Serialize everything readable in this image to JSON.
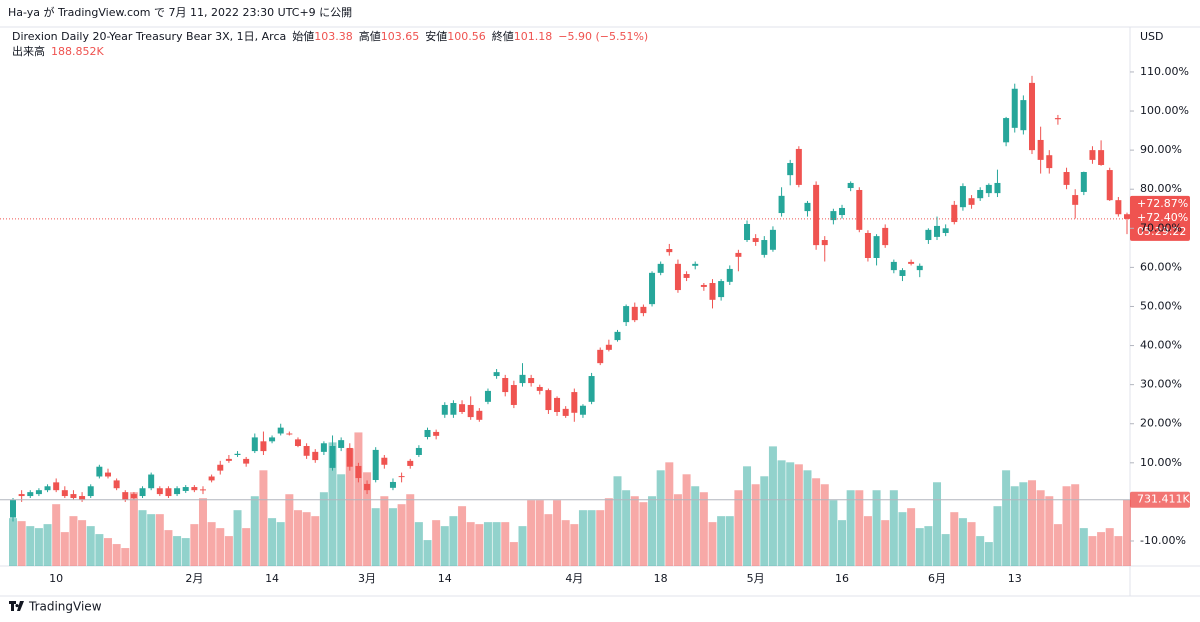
{
  "header": {
    "published": "Ha-ya が TradingView.com で 7月 11, 2022 23:30 UTC+9 に公開"
  },
  "legend": {
    "symbol": "Direxion Daily 20-Year Treasury Bear 3X, 1日, Arca",
    "ohlc": [
      {
        "label": "始値",
        "value": "103.38"
      },
      {
        "label": "高値",
        "value": "103.65"
      },
      {
        "label": "安値",
        "value": "100.56"
      },
      {
        "label": "終値",
        "value": "101.18"
      }
    ],
    "change": "−5.90 (−5.51%)",
    "volume_label": "出来高",
    "volume_value": "188.852K"
  },
  "footer": {
    "brand": "TradingView"
  },
  "chart_data": {
    "type": "candlestick",
    "currency": "USD",
    "up_color": "#26a69a",
    "down_color": "#ef5350",
    "ylim": [
      -16.4,
      121.5
    ],
    "yticks": [
      {
        "value": 110,
        "label": "110.00%"
      },
      {
        "value": 100,
        "label": "100.00%"
      },
      {
        "value": 90,
        "label": "90.00%"
      },
      {
        "value": 80,
        "label": "80.00%"
      },
      {
        "value": 70,
        "label": "70.00%"
      },
      {
        "value": 60,
        "label": "60.00%"
      },
      {
        "value": 50,
        "label": "50.00%"
      },
      {
        "value": 40,
        "label": "40.00%"
      },
      {
        "value": 30,
        "label": "30.00%"
      },
      {
        "value": 20,
        "label": "20.00%"
      },
      {
        "value": 10,
        "label": "10.00%"
      },
      {
        "value": -10,
        "label": "-10.00%"
      }
    ],
    "vlim": [
      0,
      1600
    ],
    "price_labels": [
      "+72.87%",
      "+72.40%",
      "05:29:22"
    ],
    "volume_last_label": "731.411K",
    "categories": [
      null,
      null,
      null,
      null,
      null,
      "10",
      null,
      null,
      null,
      null,
      null,
      null,
      null,
      null,
      null,
      null,
      null,
      null,
      null,
      null,
      null,
      "2月",
      null,
      null,
      null,
      null,
      null,
      null,
      null,
      null,
      "14",
      null,
      null,
      null,
      null,
      null,
      null,
      null,
      null,
      null,
      null,
      "3月",
      null,
      null,
      null,
      null,
      null,
      null,
      null,
      null,
      "14",
      null,
      null,
      null,
      null,
      null,
      null,
      null,
      null,
      null,
      null,
      null,
      null,
      null,
      null,
      "4月",
      null,
      null,
      null,
      null,
      null,
      null,
      null,
      null,
      null,
      "18",
      null,
      null,
      null,
      null,
      null,
      null,
      null,
      null,
      null,
      null,
      "5月",
      null,
      null,
      null,
      null,
      null,
      null,
      null,
      null,
      null,
      "16",
      null,
      null,
      null,
      null,
      null,
      null,
      null,
      null,
      null,
      null,
      "6月",
      null,
      null,
      null,
      null,
      null,
      null,
      null,
      null,
      "13",
      null,
      null,
      null,
      null,
      null,
      null,
      null,
      null,
      null,
      null,
      null,
      null,
      null
    ],
    "ohlc": [
      [
        -4,
        1,
        -5,
        0.5
      ],
      [
        2,
        3,
        0,
        1.5
      ],
      [
        1.5,
        3,
        1,
        2.5
      ],
      [
        2,
        3.5,
        1.5,
        3
      ],
      [
        3,
        4.5,
        2.5,
        4
      ],
      [
        5,
        6,
        2.5,
        3
      ],
      [
        3,
        4,
        1,
        1.5
      ],
      [
        2,
        3,
        0.5,
        1
      ],
      [
        1.5,
        2.5,
        0,
        0.5
      ],
      [
        1.5,
        4.5,
        1,
        4
      ],
      [
        6.5,
        9.5,
        6,
        9
      ],
      [
        7.5,
        8.5,
        6,
        6.5
      ],
      [
        5.5,
        6,
        3,
        3.5
      ],
      [
        2.5,
        3,
        0,
        0.5
      ],
      [
        2,
        2.5,
        0.5,
        1
      ],
      [
        1.5,
        4,
        1,
        3.5
      ],
      [
        3.5,
        7.5,
        3,
        7
      ],
      [
        3.5,
        4,
        1.5,
        2
      ],
      [
        3.5,
        4,
        1,
        1.5
      ],
      [
        2,
        4,
        1.5,
        3.5
      ],
      [
        2.8,
        4.3,
        2.3,
        3.8
      ],
      [
        3.8,
        4.3,
        2.5,
        3
      ],
      [
        3.2,
        4,
        2,
        3
      ],
      [
        6.5,
        7,
        5,
        5.5
      ],
      [
        9.5,
        10.5,
        7,
        8
      ],
      [
        11,
        12,
        10,
        10.5
      ],
      [
        12,
        13,
        11.5,
        12.3
      ],
      [
        11,
        11.5,
        9,
        9.8
      ],
      [
        13,
        17.5,
        12.5,
        16.5
      ],
      [
        15.5,
        18,
        12,
        13
      ],
      [
        15.5,
        17,
        15,
        16.5
      ],
      [
        17.5,
        20,
        17,
        19
      ],
      [
        17.5,
        18,
        17,
        17.3
      ],
      [
        16,
        16.5,
        14,
        14.3
      ],
      [
        14.3,
        15,
        11,
        11.8
      ],
      [
        12.8,
        13.5,
        10,
        10.7
      ],
      [
        12.8,
        15.5,
        12,
        15
      ],
      [
        8.7,
        17,
        8,
        14.3
      ],
      [
        13.8,
        16.5,
        13,
        15.8
      ],
      [
        13.8,
        15,
        8,
        9
      ],
      [
        9.2,
        10,
        5,
        6.1
      ],
      [
        4.6,
        5.5,
        2,
        3
      ],
      [
        5.6,
        14,
        5,
        13.3
      ],
      [
        11.3,
        12,
        8.5,
        9.5
      ],
      [
        3.6,
        6,
        3,
        5.1
      ],
      [
        6.6,
        7.5,
        5,
        6.4
      ],
      [
        10.5,
        11,
        8.5,
        9.2
      ],
      [
        12,
        14.5,
        11.5,
        13.8
      ],
      [
        16.6,
        19,
        16,
        18.4
      ],
      [
        17.9,
        18.5,
        16,
        16.9
      ],
      [
        22.3,
        25.5,
        21.5,
        24.8
      ],
      [
        22.3,
        26,
        21.5,
        25.3
      ],
      [
        25,
        26,
        22.5,
        23
      ],
      [
        24.8,
        27,
        21,
        21.7
      ],
      [
        23.3,
        24,
        20.5,
        21
      ],
      [
        25.6,
        29,
        25,
        28.4
      ],
      [
        32.2,
        34,
        31.5,
        33.2
      ],
      [
        31.7,
        32.5,
        27,
        28.1
      ],
      [
        29.9,
        31,
        24,
        24.8
      ],
      [
        30.4,
        35.5,
        29.5,
        32.5
      ],
      [
        31.7,
        32.5,
        29.5,
        30.4
      ],
      [
        29.4,
        30,
        27.5,
        28.4
      ],
      [
        28.6,
        29,
        22.5,
        23.5
      ],
      [
        26.6,
        27,
        22,
        23
      ],
      [
        23.8,
        24.5,
        21.5,
        22
      ],
      [
        28.1,
        29,
        20.5,
        22.8
      ],
      [
        22.3,
        25,
        21.5,
        24.6
      ],
      [
        25.6,
        33,
        25,
        32.2
      ],
      [
        38.9,
        39.5,
        35,
        35.5
      ],
      [
        40.2,
        41.5,
        38.5,
        38.9
      ],
      [
        41.4,
        44,
        41,
        43.5
      ],
      [
        46,
        50.5,
        45,
        50.1
      ],
      [
        49.9,
        51,
        46,
        46.5
      ],
      [
        49.9,
        50.5,
        47.5,
        48.3
      ],
      [
        50.6,
        59,
        50,
        58.6
      ],
      [
        58.6,
        61.5,
        58,
        60.9
      ],
      [
        64.7,
        66,
        63,
        63.9
      ],
      [
        60.9,
        62,
        53.5,
        54.2
      ],
      [
        58.3,
        59,
        56.5,
        57.3
      ],
      [
        60.4,
        61.5,
        59.5,
        60.9
      ],
      [
        55.5,
        56,
        54,
        55
      ],
      [
        56,
        57,
        49.5,
        51.7
      ],
      [
        52.4,
        57,
        51.5,
        56.5
      ],
      [
        56.3,
        60.5,
        55.5,
        59.6
      ],
      [
        63.7,
        64.5,
        59,
        62.7
      ],
      [
        67,
        72,
        66.5,
        71.1
      ],
      [
        67.5,
        68.5,
        65.5,
        66.5
      ],
      [
        63.2,
        68,
        62.5,
        67
      ],
      [
        64.5,
        70.5,
        64,
        69.6
      ],
      [
        73.9,
        80.5,
        73,
        78.3
      ],
      [
        83.6,
        87.5,
        81,
        86.7
      ],
      [
        90.3,
        91,
        80.5,
        81.1
      ],
      [
        74.4,
        77,
        73,
        76.5
      ],
      [
        81.1,
        82,
        64.5,
        65.7
      ],
      [
        67,
        68,
        61.5,
        65.7
      ],
      [
        72.1,
        75,
        71,
        74.4
      ],
      [
        73.4,
        76,
        72.5,
        75.2
      ],
      [
        80.3,
        82,
        79.5,
        81.6
      ],
      [
        79.8,
        80.5,
        69,
        69.6
      ],
      [
        68.8,
        69.5,
        61.5,
        62.4
      ],
      [
        62.4,
        68.5,
        60.5,
        68
      ],
      [
        70.1,
        71,
        65,
        65.7
      ],
      [
        59.3,
        62,
        58.5,
        61.4
      ],
      [
        57.8,
        59.8,
        56.5,
        59.3
      ],
      [
        61.4,
        62,
        60.5,
        60.9
      ],
      [
        59.3,
        61,
        57.5,
        60.4
      ],
      [
        67,
        70,
        66,
        69.6
      ],
      [
        67.8,
        73,
        67,
        70.6
      ],
      [
        68.8,
        71,
        68,
        70
      ],
      [
        76,
        77,
        71,
        71.6
      ],
      [
        75.4,
        81.5,
        74.5,
        80.8
      ],
      [
        77.7,
        78.5,
        75,
        76
      ],
      [
        77.7,
        80.5,
        77,
        79.8
      ],
      [
        79,
        81.5,
        78,
        81.1
      ],
      [
        79,
        85,
        78,
        81.6
      ],
      [
        92,
        98.5,
        91,
        98.2
      ],
      [
        95.7,
        107,
        94.5,
        105.7
      ],
      [
        95.1,
        104,
        94,
        102.8
      ],
      [
        107.2,
        109,
        89,
        90
      ],
      [
        92.6,
        96,
        84,
        87.5
      ],
      [
        88.7,
        90,
        84,
        85.4
      ],
      [
        98.2,
        99,
        96.5,
        97.9
      ],
      [
        84.4,
        85.5,
        80,
        81.1
      ],
      [
        78.5,
        80,
        72.5,
        76
      ],
      [
        79.3,
        84.5,
        78.5,
        84.4
      ],
      [
        90,
        91,
        86.5,
        87.5
      ],
      [
        90,
        92.5,
        86,
        86.2
      ],
      [
        84.9,
        85.5,
        77,
        77.2
      ],
      [
        77.2,
        78,
        73,
        73.6
      ],
      [
        73.6,
        74,
        68.5,
        72.4
      ]
    ],
    "volume": [
      528,
      495,
      440,
      418,
      462,
      682,
      374,
      550,
      506,
      440,
      352,
      308,
      242,
      198,
      814,
      616,
      572,
      572,
      396,
      330,
      308,
      462,
      748,
      484,
      418,
      330,
      616,
      418,
      770,
      1056,
      528,
      484,
      792,
      616,
      594,
      550,
      814,
      1364,
      1012,
      1298,
      1474,
      1034,
      638,
      770,
      638,
      682,
      792,
      484,
      286,
      506,
      440,
      550,
      660,
      484,
      462,
      484,
      484,
      484,
      264,
      440,
      726,
      726,
      572,
      726,
      506,
      462,
      616,
      616,
      616,
      748,
      990,
      836,
      770,
      704,
      770,
      1056,
      1144,
      792,
      1012,
      880,
      814,
      484,
      550,
      550,
      836,
      1100,
      902,
      990,
      1320,
      1166,
      1144,
      1122,
      1056,
      968,
      902,
      726,
      506,
      836,
      836,
      550,
      836,
      506,
      836,
      594,
      638,
      418,
      440,
      924,
      352,
      594,
      528,
      484,
      330,
      264,
      660,
      1056,
      880,
      924,
      946,
      836,
      770,
      462,
      880,
      902,
      418,
      330,
      374,
      418,
      330,
      731.411
    ]
  }
}
